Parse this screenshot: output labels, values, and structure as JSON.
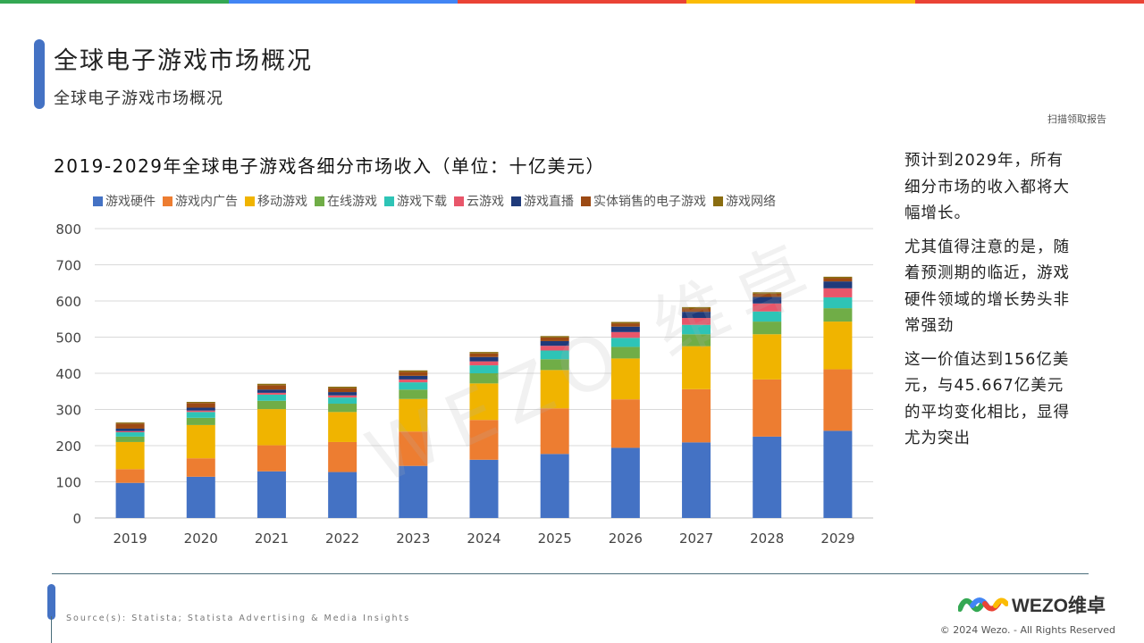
{
  "top_bar_colors": [
    "#34a853",
    "#4285f4",
    "#ea4335",
    "#fbbc05",
    "#ea4335"
  ],
  "header": {
    "title": "全球电子游戏市场概况",
    "subtitle": "全球电子游戏市场概况",
    "scan_link": "扫描领取报告"
  },
  "watermark": "WEZO 维卓",
  "side_text": {
    "p1": "预计到2029年，所有细分市场的收入都将大幅增长。",
    "p2": "尤其值得注意的是，随着预测期的临近，游戏硬件领域的增长势头非常强劲",
    "p3": "这一价值达到156亿美元，与45.667亿美元的平均变化相比，显得尤为突出"
  },
  "footer": {
    "source": "Source(s): Statista; Statista Advertising & Media Insights",
    "logo_text": "WEZO维卓",
    "copyright": "© 2024 Wezo. - All Rights Reserved"
  },
  "chart_data": {
    "type": "bar",
    "stacked": true,
    "title": "2019-2029年全球电子游戏各细分市场收入（单位：十亿美元）",
    "categories": [
      "2019",
      "2020",
      "2021",
      "2022",
      "2023",
      "2024",
      "2025",
      "2026",
      "2027",
      "2028",
      "2029"
    ],
    "ylim": [
      0,
      800
    ],
    "yticks": [
      0,
      100,
      200,
      300,
      400,
      500,
      600,
      700,
      800
    ],
    "grid": true,
    "legend_position": "top",
    "series": [
      {
        "name": "游戏硬件",
        "color": "#4472c4",
        "values": [
          97,
          114,
          129,
          127,
          144,
          161,
          177,
          194,
          209,
          225,
          241
        ]
      },
      {
        "name": "游戏内广告",
        "color": "#ed7d31",
        "values": [
          38,
          51,
          72,
          83,
          95,
          110,
          126,
          134,
          147,
          158,
          170
        ]
      },
      {
        "name": "移动游戏",
        "color": "#f0b400",
        "values": [
          75,
          92,
          100,
          83,
          90,
          101,
          106,
          113,
          119,
          125,
          132
        ]
      },
      {
        "name": "在线游戏",
        "color": "#70ad47",
        "values": [
          15,
          20,
          23,
          23,
          26,
          28,
          30,
          32,
          33,
          35,
          37
        ]
      },
      {
        "name": "游戏下载",
        "color": "#2ec4b6",
        "values": [
          12,
          16,
          17,
          17,
          20,
          22,
          24,
          25,
          26,
          28,
          30
        ]
      },
      {
        "name": "云游戏",
        "color": "#e8566a",
        "values": [
          3,
          4,
          5,
          6,
          8,
          11,
          13,
          16,
          19,
          22,
          25
        ]
      },
      {
        "name": "游戏直播",
        "color": "#1f3a7a",
        "values": [
          7,
          8,
          9,
          9,
          10,
          12,
          13,
          15,
          17,
          18,
          19
        ]
      },
      {
        "name": "实体销售的电子游戏",
        "color": "#9c4a14",
        "values": [
          14,
          13,
          12,
          11,
          11,
          10,
          10,
          9,
          9,
          9,
          9
        ]
      },
      {
        "name": "游戏网络",
        "color": "#8a6d10",
        "values": [
          3,
          3,
          4,
          4,
          4,
          4,
          4,
          4,
          4,
          4,
          4
        ]
      }
    ]
  }
}
